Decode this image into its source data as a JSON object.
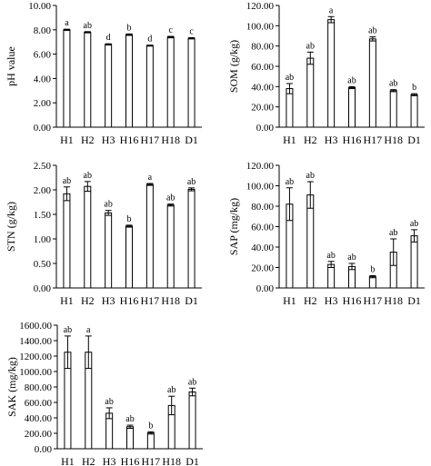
{
  "chart_data": [
    {
      "type": "bar",
      "ylabel": "pH value",
      "categories": [
        "H1",
        "H2",
        "H3",
        "H16",
        "H17",
        "H18",
        "D1"
      ],
      "values": [
        8.0,
        7.8,
        6.8,
        7.6,
        6.7,
        7.4,
        7.3
      ],
      "errors": [
        0.05,
        0.05,
        0.05,
        0.06,
        0.04,
        0.06,
        0.05
      ],
      "labels": [
        "a",
        "ab",
        "d",
        "b",
        "d",
        "c",
        "c"
      ],
      "ylim": [
        0,
        10
      ],
      "yticks": [
        "0.00",
        "2.00",
        "4.00",
        "6.00",
        "8.00",
        "10.00"
      ],
      "grid": false
    },
    {
      "type": "bar",
      "ylabel": "SOM (g/kg)",
      "categories": [
        "H1",
        "H2",
        "H3",
        "H16",
        "H17",
        "H18",
        "D1"
      ],
      "values": [
        38,
        68,
        106,
        39,
        87,
        36,
        32
      ],
      "errors": [
        5,
        6,
        3,
        1,
        2,
        1,
        1
      ],
      "labels": [
        "ab",
        "ab",
        "a",
        "ab",
        "ab",
        "ab",
        "b"
      ],
      "ylim": [
        0,
        120
      ],
      "yticks": [
        "0.00",
        "20.00",
        "40.00",
        "60.00",
        "80.00",
        "100.00",
        "120.00"
      ],
      "grid": false
    },
    {
      "type": "bar",
      "ylabel": "STN (g/kg)",
      "categories": [
        "H1",
        "H2",
        "H3",
        "H16",
        "H17",
        "H18",
        "D1"
      ],
      "values": [
        1.92,
        2.07,
        1.53,
        1.26,
        2.11,
        1.69,
        2.01
      ],
      "errors": [
        0.14,
        0.1,
        0.05,
        0.02,
        0.02,
        0.02,
        0.03
      ],
      "labels": [
        "ab",
        "ab",
        "ab",
        "b",
        "a",
        "ab",
        "ab"
      ],
      "ylim": [
        0,
        2.5
      ],
      "yticks": [
        "0.00",
        "0.50",
        "1.00",
        "1.50",
        "2.00",
        "2.50"
      ],
      "grid": false
    },
    {
      "type": "bar",
      "ylabel": "SAP (mg/kg)",
      "categories": [
        "H1",
        "H2",
        "H3",
        "H16",
        "H17",
        "H18",
        "D1"
      ],
      "values": [
        82,
        91,
        23,
        21,
        11,
        35,
        51
      ],
      "errors": [
        16,
        13,
        3,
        3,
        1,
        13,
        6
      ],
      "labels": [
        "ab",
        "ab",
        "ab",
        "ab",
        "b",
        "ab",
        "ab"
      ],
      "ylim": [
        0,
        120
      ],
      "yticks": [
        "0.00",
        "20.00",
        "40.00",
        "60.00",
        "80.00",
        "100.00",
        "120.00"
      ],
      "grid": false
    },
    {
      "type": "bar",
      "ylabel": "SAK (mg/kg)",
      "categories": [
        "H1",
        "H2",
        "H3",
        "H16",
        "H17",
        "H18",
        "D1"
      ],
      "values": [
        1250,
        1250,
        460,
        285,
        205,
        560,
        735
      ],
      "errors": [
        210,
        210,
        70,
        20,
        15,
        120,
        50
      ],
      "labels": [
        "ab",
        "a",
        "ab",
        "ab",
        "b",
        "ab",
        "ab"
      ],
      "ylim": [
        0,
        1600
      ],
      "yticks": [
        "0.00",
        "200.00",
        "400.00",
        "600.00",
        "800.00",
        "1000.00",
        "1200.00",
        "1400.00",
        "1600.00"
      ],
      "grid": false
    }
  ]
}
